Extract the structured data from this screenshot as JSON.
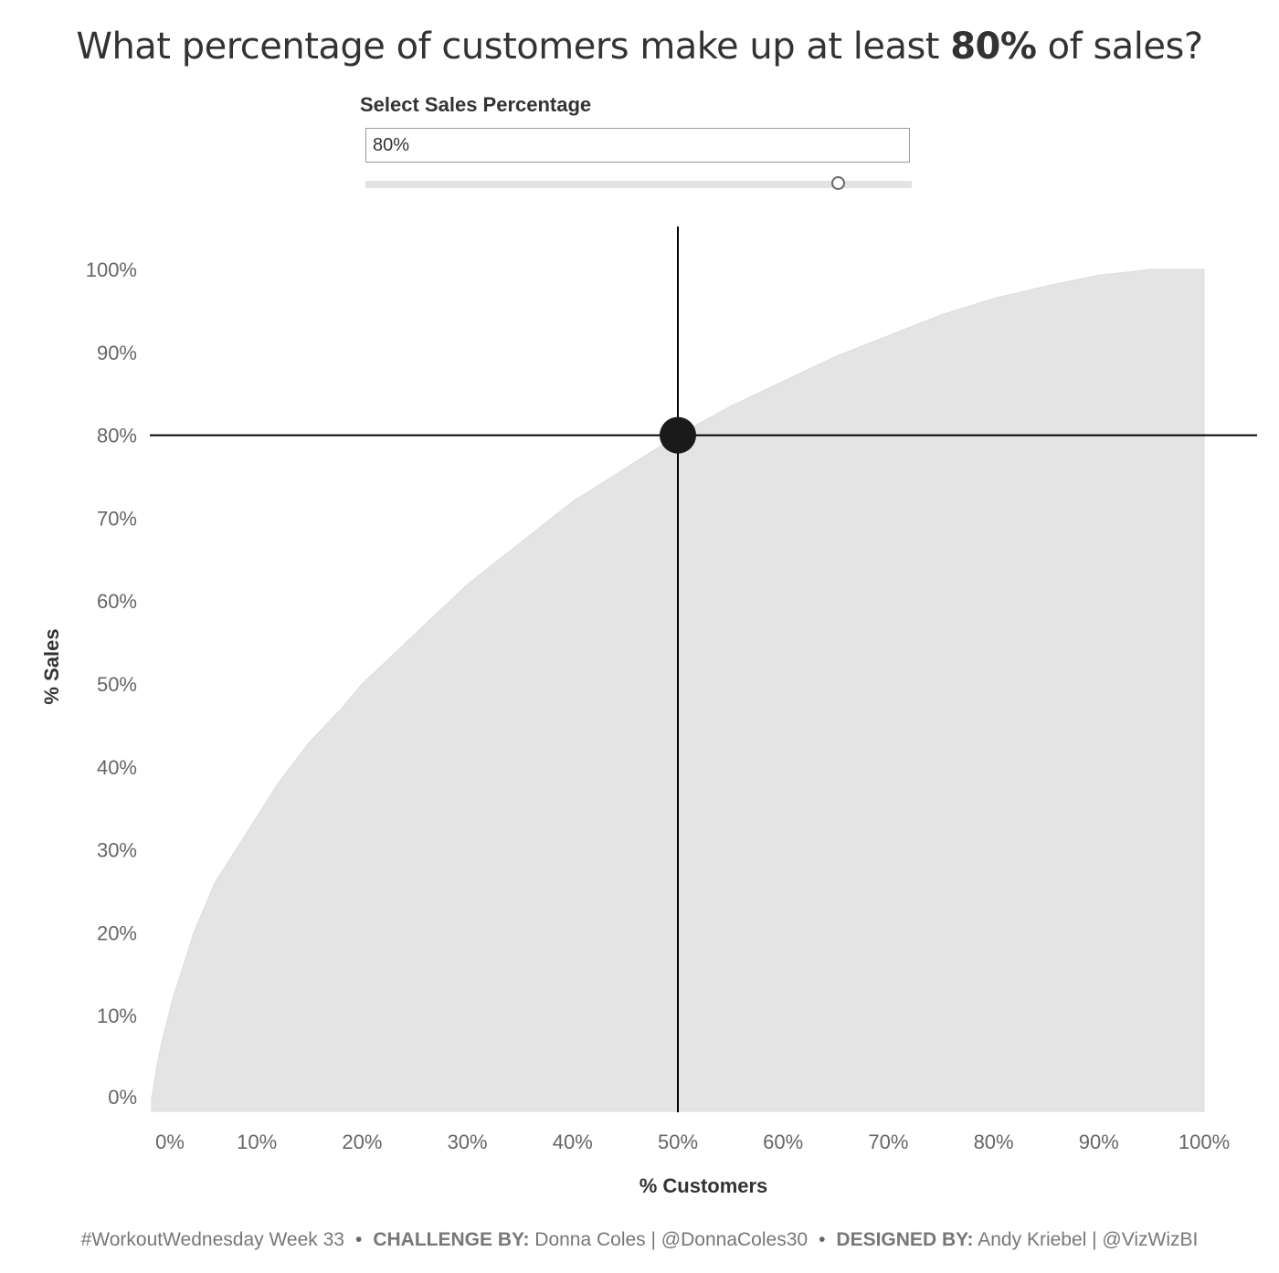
{
  "title": {
    "prefix": "What percentage of customers make up at least ",
    "highlight": "80%",
    "suffix": " of sales?"
  },
  "parameter": {
    "label": "Select Sales Percentage",
    "value": "80%",
    "slider_fraction": 0.865
  },
  "footer": {
    "part1": "#WorkoutWednesday Week 33",
    "bullet": "•",
    "challenge_label": "CHALLENGE BY:",
    "challenge_value": " Donna Coles | @DonnaColes30",
    "designed_label": "DESIGNED BY:",
    "designed_value": " Andy Kriebel | @VizWizBI"
  },
  "colors": {
    "area_fill": "#e4e4e4",
    "reference_line": "#000000",
    "marker": "#1a1a1a",
    "tick_text": "#666666",
    "axis_title": "#333333"
  },
  "chart_data": {
    "type": "area",
    "xlabel": "% Customers",
    "ylabel": "% Sales",
    "xlim": [
      0,
      100
    ],
    "ylim": [
      0,
      100
    ],
    "x_ticks": [
      "0%",
      "10%",
      "20%",
      "30%",
      "40%",
      "50%",
      "60%",
      "70%",
      "80%",
      "90%",
      "100%"
    ],
    "y_ticks": [
      "0%",
      "10%",
      "20%",
      "30%",
      "40%",
      "50%",
      "60%",
      "70%",
      "80%",
      "90%",
      "100%"
    ],
    "grid": false,
    "series": [
      {
        "x": [
          0,
          0.5,
          1,
          2,
          3,
          4,
          5,
          6,
          8,
          10,
          12,
          15,
          18,
          20,
          25,
          30,
          35,
          40,
          45,
          50,
          55,
          60,
          65,
          70,
          75,
          80,
          85,
          90,
          95,
          100
        ],
        "y": [
          0,
          4,
          7,
          12,
          16,
          20,
          23,
          26,
          30,
          34,
          38,
          43,
          47,
          50,
          56,
          62,
          67,
          72,
          76,
          80,
          83.5,
          86.5,
          89.5,
          92,
          94.5,
          96.5,
          98,
          99.3,
          100,
          100
        ]
      }
    ],
    "reference": {
      "x": 50,
      "y": 80
    }
  }
}
